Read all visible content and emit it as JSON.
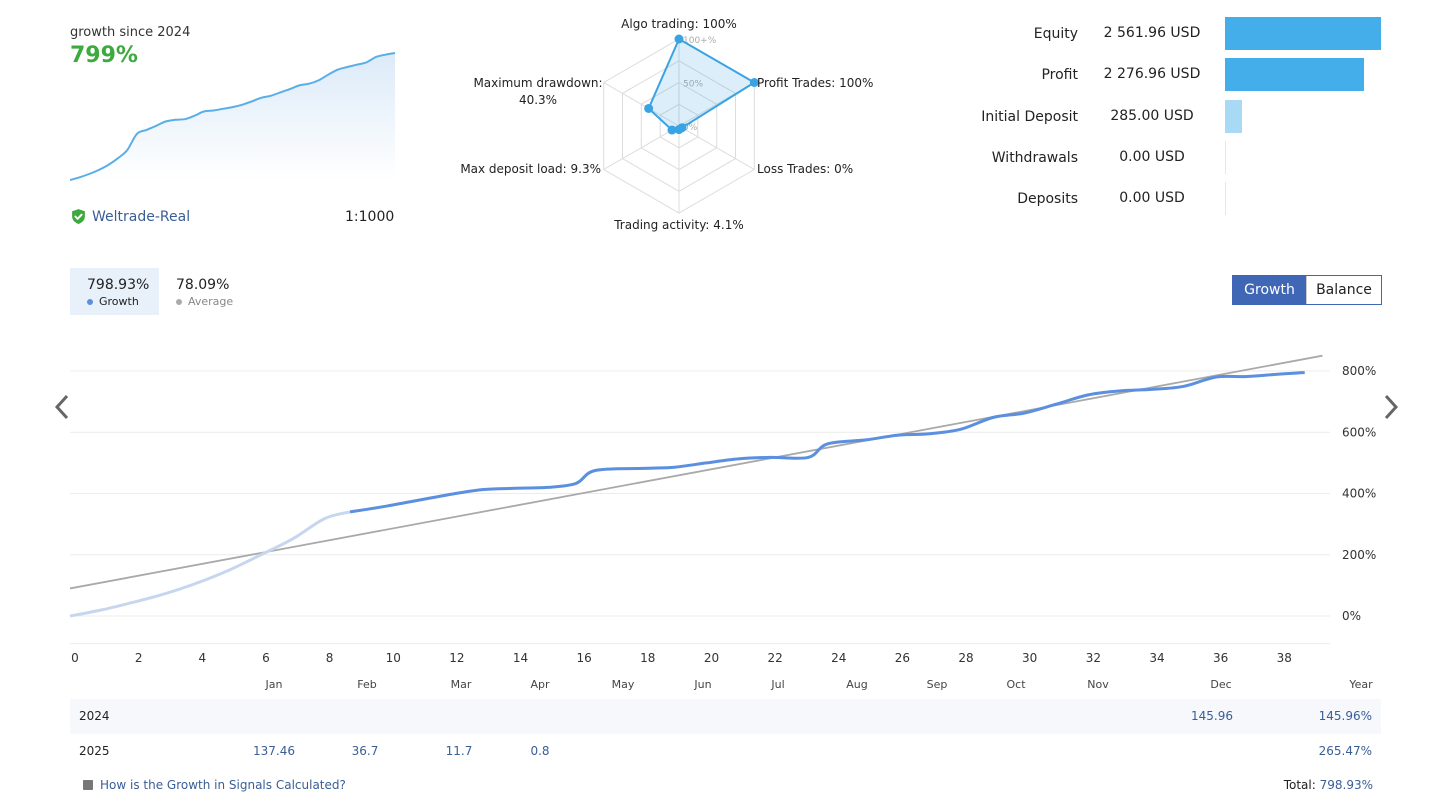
{
  "summary": {
    "growth_label": "growth since 2024",
    "growth_value": "799%",
    "broker": "Weltrade-Real",
    "leverage": "1:1000"
  },
  "radar": {
    "scale_labels": [
      "100+%",
      "50%",
      "0%"
    ],
    "axes": [
      {
        "label": "Algo trading: 100%",
        "value": 1.0
      },
      {
        "label": "Profit Trades: 100%",
        "value": 1.0
      },
      {
        "label": "Loss Trades: 0%",
        "value": 0.0
      },
      {
        "label": "Trading activity: 4.1%",
        "value": 0.041
      },
      {
        "label": "Max deposit load: 9.3%",
        "value": 0.093
      },
      {
        "label_line1": "Maximum drawdown:",
        "label_line2": "40.3%",
        "value": 0.403
      }
    ]
  },
  "stats": [
    {
      "label": "Equity",
      "value": "2 561.96 USD",
      "fraction": 1.0
    },
    {
      "label": "Profit",
      "value": "2 276.96 USD",
      "fraction": 0.889
    },
    {
      "label": "Initial Deposit",
      "value": "285.00 USD",
      "fraction": 0.111
    },
    {
      "label": "Withdrawals",
      "value": "0.00 USD",
      "fraction": 0.0
    },
    {
      "label": "Deposits",
      "value": "0.00 USD",
      "fraction": 0.0
    }
  ],
  "tabs": {
    "growth_value": "798.93%",
    "growth_label": "Growth",
    "average_value": "78.09%",
    "average_label": "Average"
  },
  "toggle": {
    "growth": "Growth",
    "balance": "Balance"
  },
  "colors": {
    "accent": "#3f67b5",
    "growth_line": "#5b8fe0",
    "growth_line_light": "#c7d6ef",
    "trend_line": "#a9a9a9",
    "radar": "#3aa3e3",
    "equity_bar": "#44aeea",
    "deposit_bar": "#a8daf5",
    "positive": "#3caa3c"
  },
  "chart_data": {
    "type": "line",
    "xlabel": "",
    "ylabel": "",
    "x_ticks": [
      "0",
      "2",
      "4",
      "6",
      "8",
      "10",
      "12",
      "14",
      "16",
      "18",
      "20",
      "22",
      "24",
      "26",
      "28",
      "30",
      "32",
      "34",
      "36",
      "38"
    ],
    "month_labels": [
      "Jan",
      "Feb",
      "Mar",
      "Apr",
      "May",
      "Jun",
      "Jul",
      "Aug",
      "Sep",
      "Oct",
      "Nov",
      "Dec",
      "Year"
    ],
    "y_ticks": [
      "800%",
      "600%",
      "400%",
      "200%",
      "0%"
    ],
    "ylim": [
      -90,
      860
    ],
    "xlim": [
      0,
      39.5
    ],
    "series": [
      {
        "name": "Growth",
        "x": [
          0,
          1,
          2,
          3,
          4,
          5,
          6,
          7,
          8,
          8.8,
          10,
          12,
          13,
          14,
          15,
          15.9,
          16.5,
          18,
          19,
          20,
          21,
          22,
          23.2,
          23.8,
          25,
          26,
          27,
          28,
          29,
          30,
          31,
          32,
          33,
          34,
          35,
          36,
          37,
          38,
          38.8
        ],
        "y": [
          0,
          20,
          45,
          73,
          108,
          150,
          200,
          252,
          318,
          340,
          360,
          398,
          413,
          417,
          420,
          433,
          475,
          482,
          486,
          500,
          513,
          518,
          518,
          562,
          575,
          590,
          595,
          610,
          648,
          663,
          692,
          722,
          735,
          740,
          750,
          780,
          782,
          790,
          795
        ]
      },
      {
        "name": "Average",
        "x": [
          0,
          39.2
        ],
        "y": [
          90,
          850
        ]
      }
    ]
  },
  "mini_chart": {
    "values": [
      0,
      8,
      18,
      30,
      45,
      65,
      90,
      138,
      150,
      162,
      175,
      180,
      182,
      192,
      205,
      208,
      213,
      218,
      225,
      235,
      246,
      252,
      262,
      272,
      283,
      288,
      298,
      315,
      330,
      338,
      345,
      352,
      368,
      375,
      380
    ]
  },
  "yearly": {
    "month_cols": [
      "Jan",
      "Feb",
      "Mar",
      "Apr",
      "May",
      "Jun",
      "Jul",
      "Aug",
      "Sep",
      "Oct",
      "Nov",
      "Dec"
    ],
    "rows": [
      {
        "year": "2024",
        "values": [
          "",
          "",
          "",
          "",
          "",
          "",
          "",
          "",
          "",
          "",
          "",
          "145.96"
        ],
        "total": "145.96%"
      },
      {
        "year": "2025",
        "values": [
          "137.46",
          "36.7",
          "11.7",
          "0.8",
          "",
          "",
          "",
          "",
          "",
          "",
          "",
          ""
        ],
        "total": "265.47%"
      }
    ]
  },
  "footer": {
    "link": "How is the Growth in Signals Calculated?",
    "total_label": "Total:",
    "total_value": "798.93%"
  }
}
